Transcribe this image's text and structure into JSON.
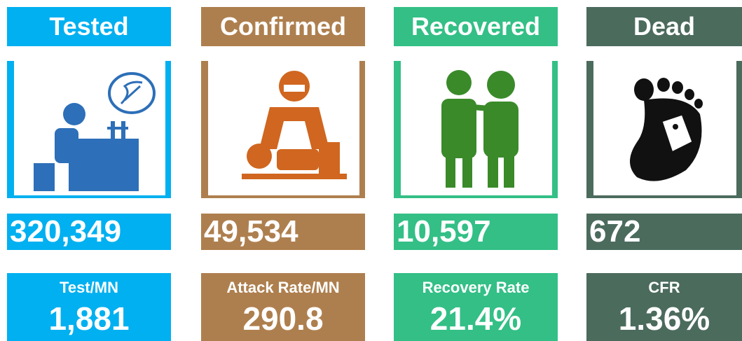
{
  "cards": [
    {
      "title": "Tested",
      "count": "320,349",
      "metric_label": "Test/MN",
      "metric_value": "1,881",
      "color": "#00b0f0"
    },
    {
      "title": "Confirmed",
      "count": "49,534",
      "metric_label": "Attack Rate/MN",
      "metric_value": "290.8",
      "color": "#ae7f4e"
    },
    {
      "title": "Recovered",
      "count": "10,597",
      "metric_label": "Recovery Rate",
      "metric_value": "21.4%",
      "color": "#33bf86"
    },
    {
      "title": "Dead",
      "count": "672",
      "metric_label": "CFR",
      "metric_value": "1.36%",
      "color": "#4b6b5d"
    }
  ]
}
